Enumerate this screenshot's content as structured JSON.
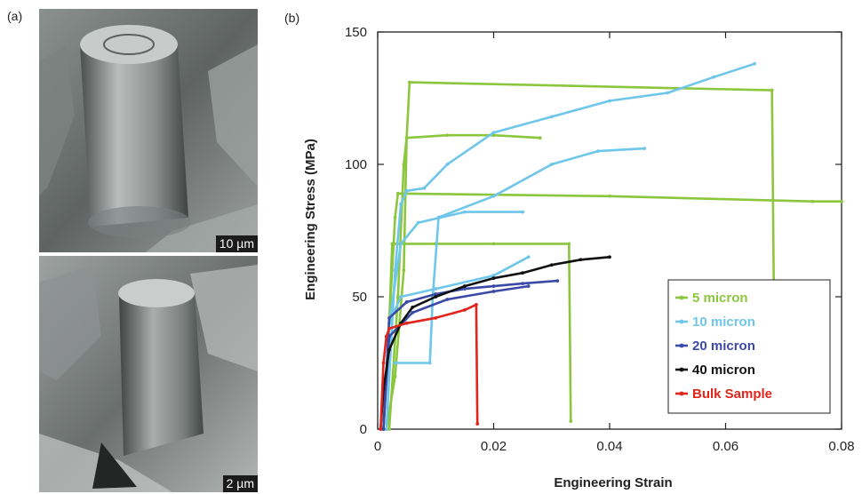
{
  "figure": {
    "panel_a_label": "(a)",
    "panel_b_label": "(b)",
    "image_top": {
      "scale_bar": "10 µm"
    },
    "image_bottom": {
      "scale_bar": "2 µm"
    }
  },
  "chart_data": {
    "type": "line",
    "title": "",
    "xlabel": "Engineering Strain",
    "ylabel": "Engineering Stress (MPa)",
    "xlim": [
      0,
      0.08
    ],
    "ylim": [
      0,
      150
    ],
    "xticks": [
      0,
      0.02,
      0.04,
      0.06,
      0.08
    ],
    "xtick_labels": [
      "0",
      "0.02",
      "0.04",
      "0.06",
      "0.08"
    ],
    "yticks": [
      0,
      50,
      100,
      150
    ],
    "ytick_labels": [
      "0",
      "50",
      "100",
      "150"
    ],
    "grid": false,
    "legend_position": "bottom-right",
    "series": [
      {
        "name": "5 micron",
        "color": "#8cc63f",
        "curves": [
          [
            [
              0.0015,
              0
            ],
            [
              0.003,
              20
            ],
            [
              0.0045,
              60
            ],
            [
              0.005,
              110
            ],
            [
              0.0055,
              131
            ],
            [
              0.068,
              128
            ],
            [
              0.0685,
              8
            ]
          ],
          [
            [
              0.002,
              0
            ],
            [
              0.0035,
              50
            ],
            [
              0.0045,
              100
            ],
            [
              0.005,
              110
            ],
            [
              0.012,
              111
            ],
            [
              0.02,
              111
            ],
            [
              0.028,
              110
            ]
          ],
          [
            [
              0.001,
              0
            ],
            [
              0.002,
              40
            ],
            [
              0.003,
              80
            ],
            [
              0.0035,
              89
            ],
            [
              0.04,
              88
            ],
            [
              0.075,
              86
            ],
            [
              0.08,
              86
            ]
          ],
          [
            [
              0.001,
              0
            ],
            [
              0.002,
              40
            ],
            [
              0.0025,
              70
            ],
            [
              0.01,
              70
            ],
            [
              0.02,
              70
            ],
            [
              0.033,
              70
            ],
            [
              0.0333,
              3
            ]
          ]
        ]
      },
      {
        "name": "10 micron",
        "color": "#6ec6ea",
        "curves": [
          [
            [
              0.0015,
              0
            ],
            [
              0.003,
              60
            ],
            [
              0.004,
              85
            ],
            [
              0.005,
              90
            ],
            [
              0.008,
              91
            ],
            [
              0.012,
              100
            ],
            [
              0.02,
              112
            ],
            [
              0.03,
              118
            ],
            [
              0.04,
              124
            ],
            [
              0.05,
              127
            ],
            [
              0.058,
              133
            ],
            [
              0.065,
              138
            ]
          ],
          [
            [
              0.003,
              25
            ],
            [
              0.009,
              25
            ],
            [
              0.0095,
              50
            ],
            [
              0.0105,
              80
            ],
            [
              0.02,
              88
            ],
            [
              0.03,
              100
            ],
            [
              0.038,
              105
            ],
            [
              0.046,
              106
            ]
          ],
          [
            [
              0.002,
              40
            ],
            [
              0.004,
              70
            ],
            [
              0.007,
              78
            ],
            [
              0.015,
              82
            ],
            [
              0.025,
              82
            ]
          ],
          [
            [
              0.002,
              40
            ],
            [
              0.004,
              50
            ],
            [
              0.01,
              53
            ],
            [
              0.02,
              58
            ],
            [
              0.026,
              65
            ]
          ]
        ]
      },
      {
        "name": "20 micron",
        "color": "#3b4aa6",
        "curves": [
          [
            [
              0.001,
              0
            ],
            [
              0.002,
              42
            ],
            [
              0.005,
              48
            ],
            [
              0.01,
              51
            ],
            [
              0.015,
              53
            ],
            [
              0.02,
              54
            ],
            [
              0.025,
              55
            ],
            [
              0.031,
              56
            ]
          ],
          [
            [
              0.001,
              0
            ],
            [
              0.002,
              35
            ],
            [
              0.006,
              44
            ],
            [
              0.012,
              49
            ],
            [
              0.02,
              52
            ],
            [
              0.026,
              54
            ]
          ]
        ]
      },
      {
        "name": "40 micron",
        "color": "#111111",
        "curves": [
          [
            [
              0.0005,
              0
            ],
            [
              0.001,
              15
            ],
            [
              0.002,
              30
            ],
            [
              0.004,
              40
            ],
            [
              0.006,
              46
            ],
            [
              0.01,
              50
            ],
            [
              0.015,
              54
            ],
            [
              0.02,
              57
            ],
            [
              0.025,
              59
            ],
            [
              0.03,
              62
            ],
            [
              0.035,
              64
            ],
            [
              0.04,
              65
            ]
          ]
        ]
      },
      {
        "name": "Bulk Sample",
        "color": "#e0251b",
        "curves": [
          [
            [
              0.0005,
              0
            ],
            [
              0.001,
              25
            ],
            [
              0.0015,
              35
            ],
            [
              0.002,
              38
            ],
            [
              0.005,
              40
            ],
            [
              0.01,
              42
            ],
            [
              0.015,
              45
            ],
            [
              0.017,
              47
            ],
            [
              0.0172,
              2
            ]
          ]
        ]
      }
    ]
  }
}
